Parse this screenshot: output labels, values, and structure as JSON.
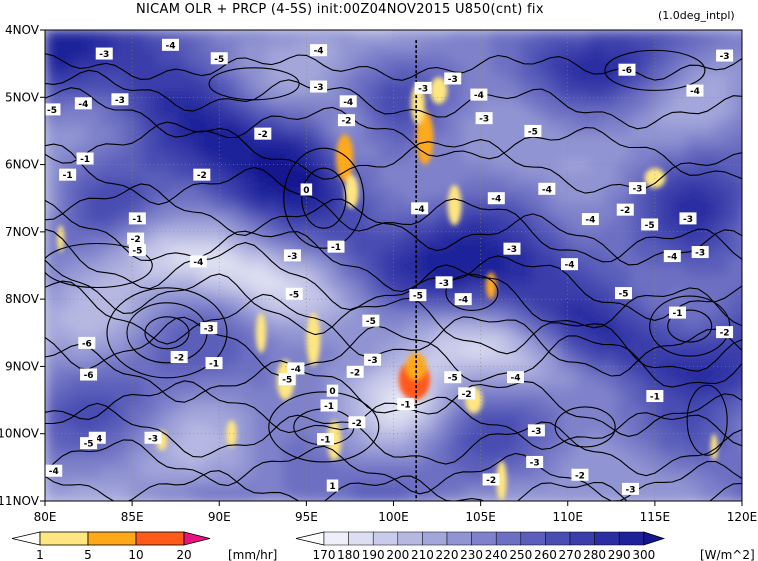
{
  "title": "NICAM  OLR + PRCP (4-5S) init:00Z04NOV2015  U850(cnt)  fix",
  "title_note": "(1.0deg_intpl)",
  "chart_data": {
    "type": "heatmap",
    "title": "NICAM  OLR + PRCP (4-5S) init:00Z04NOV2015  U850(cnt)  fix",
    "xlabel": "",
    "ylabel": "",
    "xlim": [
      80,
      120
    ],
    "ylim_dates": [
      "4NOV",
      "11NOV"
    ],
    "x_ticks": [
      "80E",
      "85E",
      "90E",
      "95E",
      "100E",
      "105E",
      "110E",
      "115E",
      "120E"
    ],
    "x_tick_values": [
      80,
      85,
      90,
      95,
      100,
      105,
      110,
      115,
      120
    ],
    "y_ticks": [
      "4NOV",
      "5NOV",
      "6NOV",
      "7NOV",
      "8NOV",
      "9NOV",
      "10NOV",
      "11NOV"
    ],
    "y_tick_values": [
      4,
      5,
      6,
      7,
      8,
      9,
      10,
      11
    ],
    "reference_line_lon": 101.3,
    "olr_colorbar": {
      "unit": "[W/m^2]",
      "levels": [
        "170",
        "180",
        "190",
        "200",
        "210",
        "220",
        "230",
        "240",
        "250",
        "260",
        "270",
        "280",
        "290",
        "300"
      ],
      "colors": [
        "#ffffff",
        "#eeeff8",
        "#dcdef1",
        "#c9cbea",
        "#b6b8e2",
        "#a3a6da",
        "#9194d2",
        "#7f82ca",
        "#6d70c2",
        "#5b5eba",
        "#4a4db2",
        "#3a3daa",
        "#2b2ea2",
        "#1e2199",
        "#141690"
      ]
    },
    "prcp_colorbar": {
      "unit": "[mm/hr]",
      "levels": [
        "1",
        "5",
        "10",
        "20"
      ],
      "colors": [
        "#ffffff",
        "#ffe680",
        "#ffa91a",
        "#ff5a1a",
        "#e8137e"
      ]
    },
    "u850_contours": [
      {
        "label": "-3",
        "lon": 83.4,
        "day": 4.35
      },
      {
        "label": "-4",
        "lon": 87.2,
        "day": 4.22
      },
      {
        "label": "-5",
        "lon": 90.0,
        "day": 4.42
      },
      {
        "label": "-4",
        "lon": 95.7,
        "day": 4.3
      },
      {
        "label": "-3",
        "lon": 95.7,
        "day": 4.84
      },
      {
        "label": "-4",
        "lon": 97.4,
        "day": 5.06
      },
      {
        "label": "-3",
        "lon": 101.7,
        "day": 4.86
      },
      {
        "label": "-3",
        "lon": 103.4,
        "day": 4.72
      },
      {
        "label": "-4",
        "lon": 104.9,
        "day": 4.96
      },
      {
        "label": "-6",
        "lon": 113.4,
        "day": 4.59
      },
      {
        "label": "-3",
        "lon": 119.0,
        "day": 4.38
      },
      {
        "label": "-4",
        "lon": 117.3,
        "day": 4.9
      },
      {
        "label": "-5",
        "lon": 80.4,
        "day": 5.18
      },
      {
        "label": "-4",
        "lon": 82.2,
        "day": 5.09
      },
      {
        "label": "-3",
        "lon": 84.3,
        "day": 5.03
      },
      {
        "label": "-2",
        "lon": 97.3,
        "day": 5.34
      },
      {
        "label": "-2",
        "lon": 92.5,
        "day": 5.54
      },
      {
        "label": "-3",
        "lon": 105.2,
        "day": 5.31
      },
      {
        "label": "-5",
        "lon": 108.0,
        "day": 5.5
      },
      {
        "label": "-1",
        "lon": 82.3,
        "day": 5.91
      },
      {
        "label": "-1",
        "lon": 81.3,
        "day": 6.15
      },
      {
        "label": "-2",
        "lon": 89.0,
        "day": 6.15
      },
      {
        "label": "0",
        "lon": 95.0,
        "day": 6.37
      },
      {
        "label": "-4",
        "lon": 105.9,
        "day": 6.5
      },
      {
        "label": "-4",
        "lon": 108.8,
        "day": 6.36
      },
      {
        "label": "-3",
        "lon": 114.0,
        "day": 6.35
      },
      {
        "label": "-2",
        "lon": 113.3,
        "day": 6.67
      },
      {
        "label": "-4",
        "lon": 101.5,
        "day": 6.65
      },
      {
        "label": "-1",
        "lon": 85.3,
        "day": 6.8
      },
      {
        "label": "-2",
        "lon": 85.2,
        "day": 7.1
      },
      {
        "label": "-5",
        "lon": 85.3,
        "day": 7.27
      },
      {
        "label": "-4",
        "lon": 88.8,
        "day": 7.44
      },
      {
        "label": "-5",
        "lon": 114.7,
        "day": 6.89
      },
      {
        "label": "-3",
        "lon": 116.9,
        "day": 6.8
      },
      {
        "label": "-4",
        "lon": 111.3,
        "day": 6.81
      },
      {
        "label": "-1",
        "lon": 96.7,
        "day": 7.22
      },
      {
        "label": "-3",
        "lon": 94.2,
        "day": 7.35
      },
      {
        "label": "-3",
        "lon": 106.8,
        "day": 7.25
      },
      {
        "label": "-4",
        "lon": 110.1,
        "day": 7.48
      },
      {
        "label": "-4",
        "lon": 116.0,
        "day": 7.36
      },
      {
        "label": "-3",
        "lon": 117.6,
        "day": 7.3
      },
      {
        "label": "-5",
        "lon": 94.3,
        "day": 7.92
      },
      {
        "label": "-5",
        "lon": 101.4,
        "day": 7.94
      },
      {
        "label": "-4",
        "lon": 104.0,
        "day": 8.0
      },
      {
        "label": "-3",
        "lon": 102.9,
        "day": 7.75
      },
      {
        "label": "-5",
        "lon": 113.2,
        "day": 7.91
      },
      {
        "label": "-1",
        "lon": 116.3,
        "day": 8.2
      },
      {
        "label": "-2",
        "lon": 119.0,
        "day": 8.49
      },
      {
        "label": "-3",
        "lon": 89.4,
        "day": 8.43
      },
      {
        "label": "-5",
        "lon": 98.7,
        "day": 8.32
      },
      {
        "label": "-6",
        "lon": 82.4,
        "day": 8.65
      },
      {
        "label": "-2",
        "lon": 87.7,
        "day": 8.86
      },
      {
        "label": "-1",
        "lon": 89.7,
        "day": 8.95
      },
      {
        "label": "-4",
        "lon": 94.4,
        "day": 9.03
      },
      {
        "label": "-5",
        "lon": 93.9,
        "day": 9.19
      },
      {
        "label": "-3",
        "lon": 98.8,
        "day": 8.9
      },
      {
        "label": "-2",
        "lon": 97.8,
        "day": 9.08
      },
      {
        "label": "-6",
        "lon": 82.5,
        "day": 9.12
      },
      {
        "label": "-5",
        "lon": 103.4,
        "day": 9.16
      },
      {
        "label": "-4",
        "lon": 107.0,
        "day": 9.16
      },
      {
        "label": "-1",
        "lon": 115.0,
        "day": 9.44
      },
      {
        "label": "-1",
        "lon": 96.3,
        "day": 9.58
      },
      {
        "label": "0",
        "lon": 96.5,
        "day": 9.36
      },
      {
        "label": "-1",
        "lon": 100.7,
        "day": 9.56
      },
      {
        "label": "-2",
        "lon": 97.9,
        "day": 9.83
      },
      {
        "label": "-2",
        "lon": 104.2,
        "day": 9.4
      },
      {
        "label": "-3",
        "lon": 108.2,
        "day": 9.95
      },
      {
        "label": "-4",
        "lon": 83.0,
        "day": 10.06
      },
      {
        "label": "-5",
        "lon": 82.5,
        "day": 10.14
      },
      {
        "label": "-3",
        "lon": 86.2,
        "day": 10.06
      },
      {
        "label": "-1",
        "lon": 96.1,
        "day": 10.08
      },
      {
        "label": "-3",
        "lon": 108.1,
        "day": 10.42
      },
      {
        "label": "-4",
        "lon": 80.5,
        "day": 10.55
      },
      {
        "label": "1",
        "lon": 96.5,
        "day": 10.77
      },
      {
        "label": "-2",
        "lon": 105.6,
        "day": 10.68
      },
      {
        "label": "-2",
        "lon": 110.7,
        "day": 10.61
      },
      {
        "label": "-3",
        "lon": 113.6,
        "day": 10.82
      }
    ],
    "grid": "dotted",
    "legend": "bottom"
  }
}
